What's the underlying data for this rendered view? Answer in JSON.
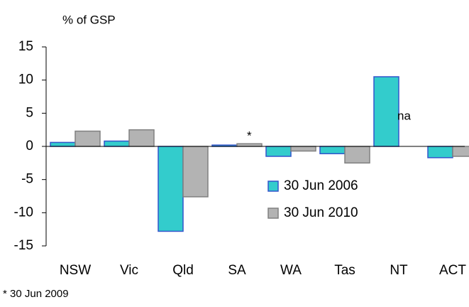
{
  "chart_data": {
    "type": "bar",
    "y_label": "% of GSP",
    "categories": [
      "NSW",
      "Vic",
      "Qld",
      "SA",
      "WA",
      "Tas",
      "NT",
      "ACT"
    ],
    "series": [
      {
        "name": "30 Jun 2006",
        "color": "#33cccc",
        "edge": "#3355cc",
        "values": [
          0.6,
          0.8,
          -12.8,
          0.2,
          -1.5,
          -1.1,
          10.5,
          -1.7
        ]
      },
      {
        "name": "30 Jun 2010",
        "color": "#b3b3b3",
        "edge": "#808080",
        "values": [
          2.3,
          2.5,
          -7.6,
          0.4,
          -0.7,
          -2.5,
          null,
          -1.5
        ]
      }
    ],
    "annotations": [
      {
        "text": "*",
        "category": "SA"
      },
      {
        "text": "na",
        "category": "NT"
      }
    ],
    "footnote": "* 30 Jun 2009",
    "ylim": [
      -15,
      15
    ],
    "yticks": [
      -15,
      -10,
      -5,
      0,
      5,
      10,
      15
    ],
    "grid": false
  }
}
